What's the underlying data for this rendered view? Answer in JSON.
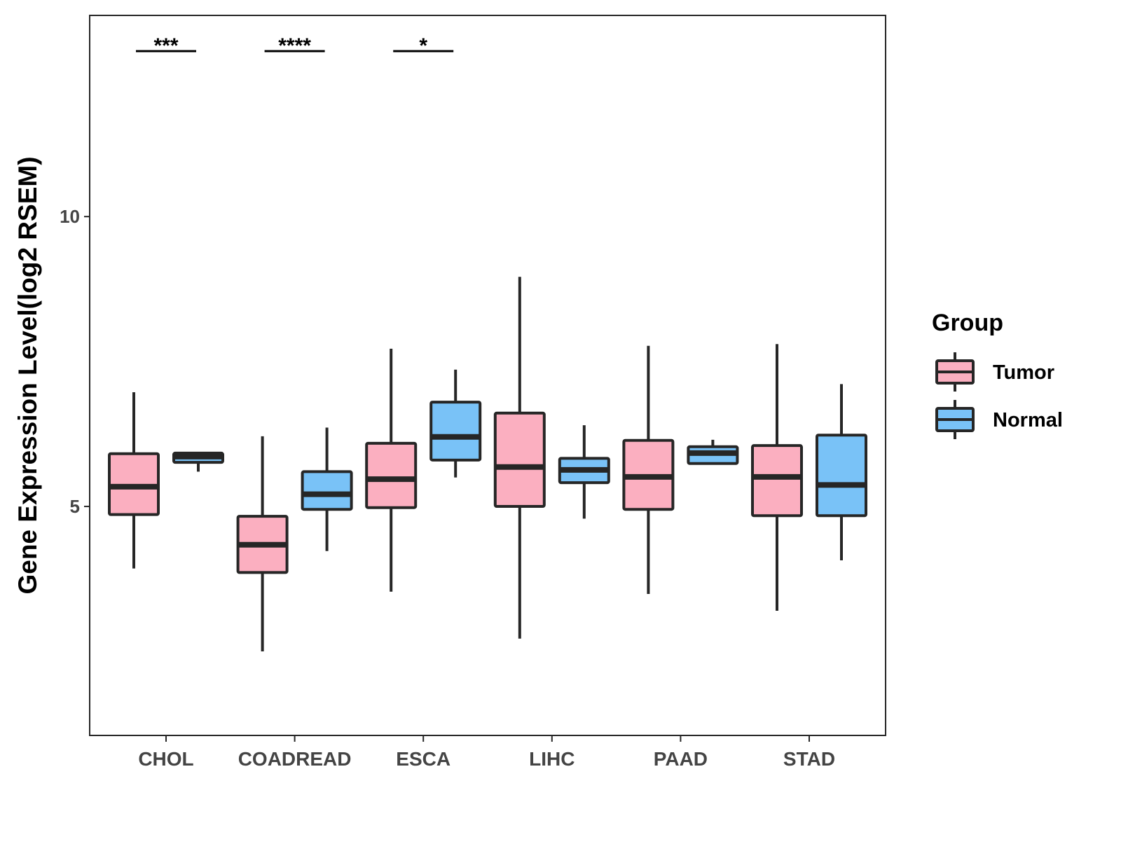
{
  "chart_data": {
    "type": "box",
    "title": "",
    "xlabel": "",
    "ylabel": "Gene Expression Level(log2 RSEM)",
    "ylim": [
      1.05,
      13.47
    ],
    "yticks": [
      5,
      10
    ],
    "ytick_labels": [
      "5",
      "10"
    ],
    "categories": [
      "CHOL",
      "COADREAD",
      "ESCA",
      "LIHC",
      "PAAD",
      "STAD"
    ],
    "legend": {
      "title": "Group",
      "position": "right",
      "entries": [
        "Tumor",
        "Normal"
      ]
    },
    "colors": {
      "Tumor": "#FBAFC0",
      "Normal": "#79C2F7",
      "outline": "#262626"
    },
    "series": [
      {
        "name": "Tumor",
        "boxes": [
          {
            "min": 3.93,
            "q1": 4.86,
            "median": 5.34,
            "q3": 5.91,
            "max": 6.97
          },
          {
            "min": 2.5,
            "q1": 3.86,
            "median": 4.34,
            "q3": 4.83,
            "max": 6.21
          },
          {
            "min": 3.53,
            "q1": 4.98,
            "median": 5.47,
            "q3": 6.09,
            "max": 7.72
          },
          {
            "min": 2.72,
            "q1": 5.0,
            "median": 5.68,
            "q3": 6.61,
            "max": 8.96
          },
          {
            "min": 3.49,
            "q1": 4.95,
            "median": 5.51,
            "q3": 6.14,
            "max": 7.77
          },
          {
            "min": 3.2,
            "q1": 4.84,
            "median": 5.51,
            "q3": 6.05,
            "max": 7.8
          }
        ]
      },
      {
        "name": "Normal",
        "boxes": [
          {
            "min": 5.6,
            "q1": 5.76,
            "median": 5.86,
            "q3": 5.92,
            "max": 5.93
          },
          {
            "min": 4.23,
            "q1": 4.95,
            "median": 5.21,
            "q3": 5.6,
            "max": 6.36
          },
          {
            "min": 5.5,
            "q1": 5.8,
            "median": 6.2,
            "q3": 6.8,
            "max": 7.36
          },
          {
            "min": 4.79,
            "q1": 5.41,
            "median": 5.63,
            "q3": 5.83,
            "max": 6.4
          },
          {
            "min": 5.74,
            "q1": 5.74,
            "median": 5.92,
            "q3": 6.03,
            "max": 6.15
          },
          {
            "min": 4.07,
            "q1": 4.84,
            "median": 5.37,
            "q3": 6.23,
            "max": 7.11
          }
        ]
      }
    ],
    "annotations": [
      {
        "category": "CHOL",
        "label": "***"
      },
      {
        "category": "COADREAD",
        "label": "****"
      },
      {
        "category": "ESCA",
        "label": "*"
      }
    ]
  }
}
